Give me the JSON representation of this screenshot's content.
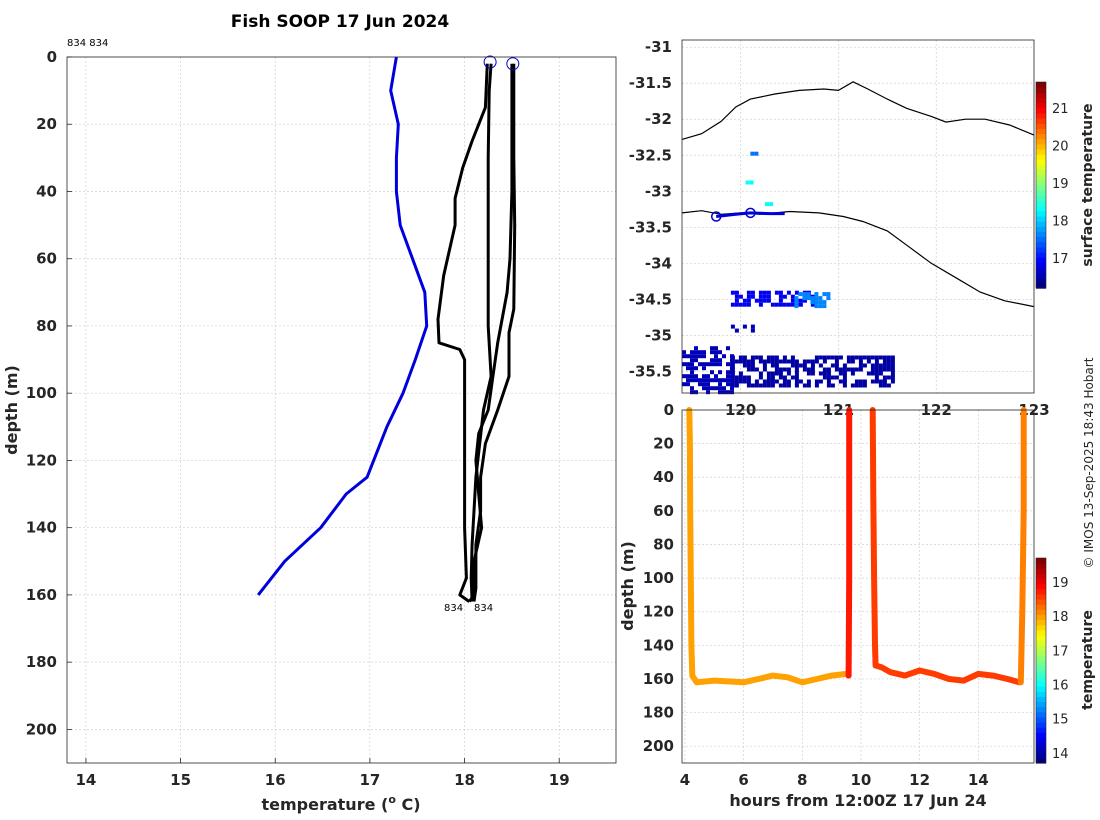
{
  "title": "Fish SOOP 17 Jun 2024",
  "copyright": "© IMOS 13-Sep-2025 18:43 Hobart",
  "chart_data": [
    {
      "type": "line",
      "name": "profile",
      "top_label": "834 834",
      "bottom_labels": [
        "834",
        "834"
      ],
      "xlabel": "temperature (",
      "xlabel_sup": "o",
      "xlabel_end": " C)",
      "ylabel": "depth (m)",
      "xlim": [
        13.8,
        19.6
      ],
      "ylim": [
        210,
        0
      ],
      "xticks": [
        "14",
        "15",
        "16",
        "17",
        "18",
        "19"
      ],
      "yticks": [
        "0",
        "20",
        "40",
        "60",
        "80",
        "100",
        "120",
        "140",
        "160",
        "180",
        "200"
      ],
      "series": [
        {
          "name": "climatology",
          "color": "#0000dd",
          "points": [
            [
              17.28,
              0
            ],
            [
              17.22,
              10
            ],
            [
              17.3,
              20
            ],
            [
              17.28,
              30
            ],
            [
              17.28,
              40
            ],
            [
              17.32,
              50
            ],
            [
              17.45,
              60
            ],
            [
              17.58,
              70
            ],
            [
              17.6,
              80
            ],
            [
              17.48,
              90
            ],
            [
              17.35,
              100
            ],
            [
              17.18,
              110
            ],
            [
              16.97,
              125
            ],
            [
              16.75,
              130
            ],
            [
              16.48,
              140
            ],
            [
              16.1,
              150
            ],
            [
              15.82,
              160
            ]
          ]
        },
        {
          "name": "profile-1",
          "color": "#000000",
          "points": [
            [
              18.28,
              2
            ],
            [
              18.26,
              10
            ],
            [
              18.25,
              30
            ],
            [
              18.25,
              50
            ],
            [
              18.25,
              80
            ],
            [
              18.28,
              95
            ],
            [
              18.2,
              105
            ],
            [
              18.12,
              125
            ],
            [
              18.08,
              145
            ],
            [
              18.07,
              155
            ],
            [
              18.08,
              162
            ]
          ]
        },
        {
          "name": "profile-2",
          "color": "#000000",
          "points": [
            [
              18.52,
              2
            ],
            [
              18.52,
              30
            ],
            [
              18.53,
              50
            ],
            [
              18.52,
              75
            ],
            [
              18.47,
              82
            ],
            [
              18.47,
              95
            ],
            [
              18.35,
              105
            ],
            [
              18.22,
              115
            ],
            [
              18.17,
              125
            ],
            [
              18.17,
              135
            ],
            [
              18.12,
              145
            ],
            [
              18.12,
              158
            ],
            [
              18.1,
              162
            ]
          ]
        },
        {
          "name": "profile-3",
          "color": "#000000",
          "points": [
            [
              18.24,
              2
            ],
            [
              18.22,
              15
            ],
            [
              18.08,
              25
            ],
            [
              17.98,
              33
            ],
            [
              17.9,
              42
            ],
            [
              17.9,
              50
            ],
            [
              17.78,
              65
            ],
            [
              17.72,
              78
            ],
            [
              17.73,
              85
            ],
            [
              17.95,
              87
            ],
            [
              18.0,
              90
            ],
            [
              18.0,
              110
            ],
            [
              18.0,
              140
            ],
            [
              18.02,
              155
            ],
            [
              17.95,
              160
            ],
            [
              18.05,
              162
            ]
          ]
        },
        {
          "name": "profile-4",
          "color": "#000000",
          "points": [
            [
              18.5,
              2
            ],
            [
              18.5,
              20
            ],
            [
              18.5,
              40
            ],
            [
              18.48,
              60
            ],
            [
              18.45,
              70
            ],
            [
              18.35,
              85
            ],
            [
              18.3,
              95
            ],
            [
              18.25,
              105
            ],
            [
              18.15,
              112
            ],
            [
              18.12,
              120
            ],
            [
              18.15,
              130
            ],
            [
              18.18,
              140
            ],
            [
              18.1,
              150
            ],
            [
              18.1,
              160
            ],
            [
              18.05,
              162
            ]
          ]
        }
      ],
      "start_markers": [
        [
          18.27,
          1.5
        ],
        [
          18.51,
          2
        ]
      ]
    },
    {
      "type": "scatter",
      "name": "map",
      "xlim": [
        119.4,
        123.0
      ],
      "ylim": [
        -35.8,
        -30.9
      ],
      "xticks": [
        "120",
        "121",
        "122",
        "123"
      ],
      "yticks": [
        "-31",
        "-31.5",
        "-32",
        "-32.5",
        "-33",
        "-33.5",
        "-34",
        "-34.5",
        "-35",
        "-35.5"
      ],
      "colorbar": {
        "label": "surface temperature",
        "min": 16.2,
        "max": 21.7,
        "ticks": [
          "17",
          "18",
          "19",
          "20",
          "21"
        ]
      },
      "coast_north": [
        [
          119.4,
          -32.28
        ],
        [
          119.6,
          -32.2
        ],
        [
          119.8,
          -32.03
        ],
        [
          119.95,
          -31.83
        ],
        [
          120.1,
          -31.72
        ],
        [
          120.35,
          -31.65
        ],
        [
          120.6,
          -31.6
        ],
        [
          120.85,
          -31.58
        ],
        [
          121.0,
          -31.6
        ],
        [
          121.15,
          -31.48
        ],
        [
          121.3,
          -31.58
        ],
        [
          121.5,
          -31.72
        ],
        [
          121.7,
          -31.85
        ],
        [
          121.95,
          -31.96
        ],
        [
          122.1,
          -32.04
        ],
        [
          122.3,
          -32.0
        ],
        [
          122.5,
          -32.0
        ],
        [
          122.75,
          -32.08
        ],
        [
          123.0,
          -32.22
        ]
      ],
      "coast_south": [
        [
          119.4,
          -33.3
        ],
        [
          119.6,
          -33.27
        ],
        [
          119.8,
          -33.32
        ],
        [
          120.0,
          -33.3
        ],
        [
          120.2,
          -33.32
        ],
        [
          120.5,
          -33.28
        ],
        [
          120.8,
          -33.3
        ],
        [
          121.05,
          -33.35
        ],
        [
          121.25,
          -33.42
        ],
        [
          121.5,
          -33.55
        ],
        [
          121.7,
          -33.75
        ],
        [
          121.95,
          -34.0
        ],
        [
          122.2,
          -34.2
        ],
        [
          122.45,
          -34.4
        ],
        [
          122.7,
          -34.52
        ],
        [
          123.0,
          -34.6
        ]
      ],
      "track": [
        [
          119.75,
          -33.35
        ],
        [
          119.95,
          -33.32
        ],
        [
          120.1,
          -33.3
        ],
        [
          120.3,
          -33.31
        ],
        [
          120.45,
          -33.31
        ]
      ],
      "track_markers": [
        [
          119.75,
          -33.35
        ],
        [
          120.1,
          -33.3
        ]
      ],
      "sst_blobs": [
        {
          "x": [
            119.9,
            120.75
          ],
          "y": [
            -34.38,
            -34.55
          ],
          "temp": 16.8
        },
        {
          "x": [
            120.55,
            120.9
          ],
          "y": [
            -34.4,
            -34.6
          ],
          "temp": 17.6
        },
        {
          "x": [
            119.9,
            120.15
          ],
          "y": [
            -34.85,
            -34.95
          ],
          "temp": 16.5
        },
        {
          "x": [
            119.9,
            121.55
          ],
          "y": [
            -35.28,
            -35.7
          ],
          "temp": 16.4
        },
        {
          "x": [
            119.4,
            119.9
          ],
          "y": [
            -35.15,
            -35.8
          ],
          "temp": 16.5
        },
        {
          "x": [
            120.1,
            120.15
          ],
          "y": [
            -32.45,
            -32.5
          ],
          "temp": 17.5
        },
        {
          "x": [
            120.05,
            120.1
          ],
          "y": [
            -32.85,
            -32.9
          ],
          "temp": 18.3
        },
        {
          "x": [
            120.25,
            120.3
          ],
          "y": [
            -33.15,
            -33.2
          ],
          "temp": 18.3
        }
      ]
    },
    {
      "type": "scatter",
      "name": "depth-time",
      "xlabel": "hours from 12:00Z 17 Jun 24",
      "ylabel": "depth (m)",
      "xlim": [
        3.9,
        15.9
      ],
      "ylim": [
        210,
        0
      ],
      "xticks": [
        "4",
        "6",
        "8",
        "10",
        "12",
        "14"
      ],
      "yticks": [
        "0",
        "20",
        "40",
        "60",
        "80",
        "100",
        "120",
        "140",
        "160",
        "180",
        "200"
      ],
      "colorbar": {
        "label": "temperature",
        "min": 13.7,
        "max": 19.7,
        "ticks": [
          "14",
          "15",
          "16",
          "17",
          "18",
          "19"
        ]
      },
      "segments": [
        {
          "points": [
            [
              4.15,
              0
            ],
            [
              4.17,
              20
            ],
            [
              4.18,
              60
            ],
            [
              4.2,
              100
            ],
            [
              4.22,
              140
            ],
            [
              4.25,
              158
            ],
            [
              4.4,
              162
            ],
            [
              5,
              161
            ],
            [
              6,
              162
            ],
            [
              6.5,
              160
            ],
            [
              7,
              158
            ],
            [
              7.5,
              159
            ],
            [
              8,
              162
            ],
            [
              8.5,
              160
            ],
            [
              9,
              158
            ],
            [
              9.5,
              157
            ]
          ],
          "temp": 18.0
        },
        {
          "points": [
            [
              9.58,
              158
            ],
            [
              9.6,
              100
            ],
            [
              9.6,
              40
            ],
            [
              9.6,
              0
            ]
          ],
          "temp": 18.8
        },
        {
          "points": [
            [
              10.4,
              0
            ],
            [
              10.42,
              50
            ],
            [
              10.45,
              100
            ],
            [
              10.48,
              140
            ],
            [
              10.5,
              152
            ],
            [
              10.7,
              153
            ],
            [
              11,
              156
            ],
            [
              11.5,
              158
            ],
            [
              12,
              155
            ],
            [
              12.5,
              157
            ],
            [
              13,
              160
            ],
            [
              13.5,
              161
            ],
            [
              14,
              157
            ],
            [
              14.5,
              158
            ],
            [
              15,
              160
            ],
            [
              15.4,
              162
            ]
          ],
          "temp": 18.6
        },
        {
          "points": [
            [
              15.45,
              162
            ],
            [
              15.5,
              120
            ],
            [
              15.55,
              60
            ],
            [
              15.55,
              0
            ]
          ],
          "temp": 18.2
        }
      ]
    }
  ]
}
